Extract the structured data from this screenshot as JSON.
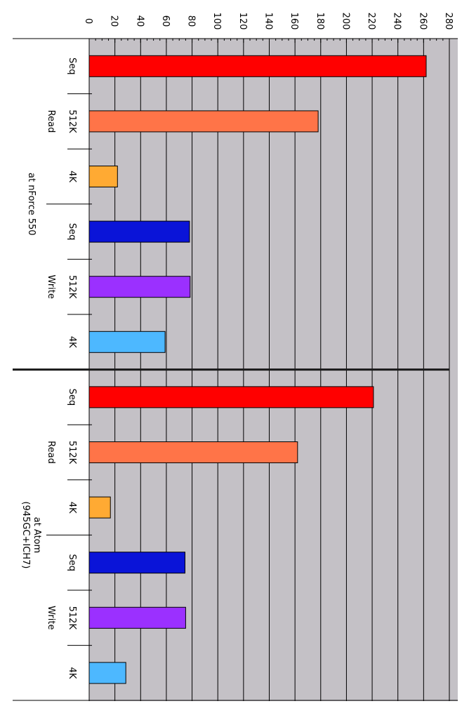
{
  "chart_data": {
    "type": "bar",
    "orientation": "horizontal",
    "xlim": [
      0,
      280
    ],
    "xticks": [
      "0",
      "20",
      "40",
      "60",
      "80",
      "100",
      "120",
      "140",
      "160",
      "180",
      "200",
      "220",
      "240",
      "260",
      "280"
    ],
    "grid": true,
    "plot_background": "#c4c1c6",
    "systems": [
      {
        "name": "at nForce 550",
        "label_lines": [
          "at nForce 550"
        ],
        "groups": [
          {
            "name": "Read",
            "bars": [
              {
                "label": "Seq",
                "value": 262,
                "color": "#ff0000"
              },
              {
                "label": "512K",
                "value": 178,
                "color": "#ff7448"
              },
              {
                "label": "4K",
                "value": 22,
                "color": "#ffaa33"
              }
            ]
          },
          {
            "name": "Write",
            "bars": [
              {
                "label": "Seq",
                "value": 78,
                "color": "#0a14d8"
              },
              {
                "label": "512K",
                "value": 78.5,
                "color": "#9b30ff"
              },
              {
                "label": "4K",
                "value": 59,
                "color": "#4db8ff"
              }
            ]
          }
        ]
      },
      {
        "name": "at Atom (945GC+ICH7)",
        "label_lines": [
          "at Atom",
          "(945GC+ICH7)"
        ],
        "groups": [
          {
            "name": "Read",
            "bars": [
              {
                "label": "Seq",
                "value": 221,
                "color": "#ff0000"
              },
              {
                "label": "512K",
                "value": 162,
                "color": "#ff7448"
              },
              {
                "label": "4K",
                "value": 16.5,
                "color": "#ffaa33"
              }
            ]
          },
          {
            "name": "Write",
            "bars": [
              {
                "label": "Seq",
                "value": 74.5,
                "color": "#0a14d8"
              },
              {
                "label": "512K",
                "value": 75,
                "color": "#9b30ff"
              },
              {
                "label": "4K",
                "value": 28.5,
                "color": "#4db8ff"
              }
            ]
          }
        ]
      }
    ]
  }
}
